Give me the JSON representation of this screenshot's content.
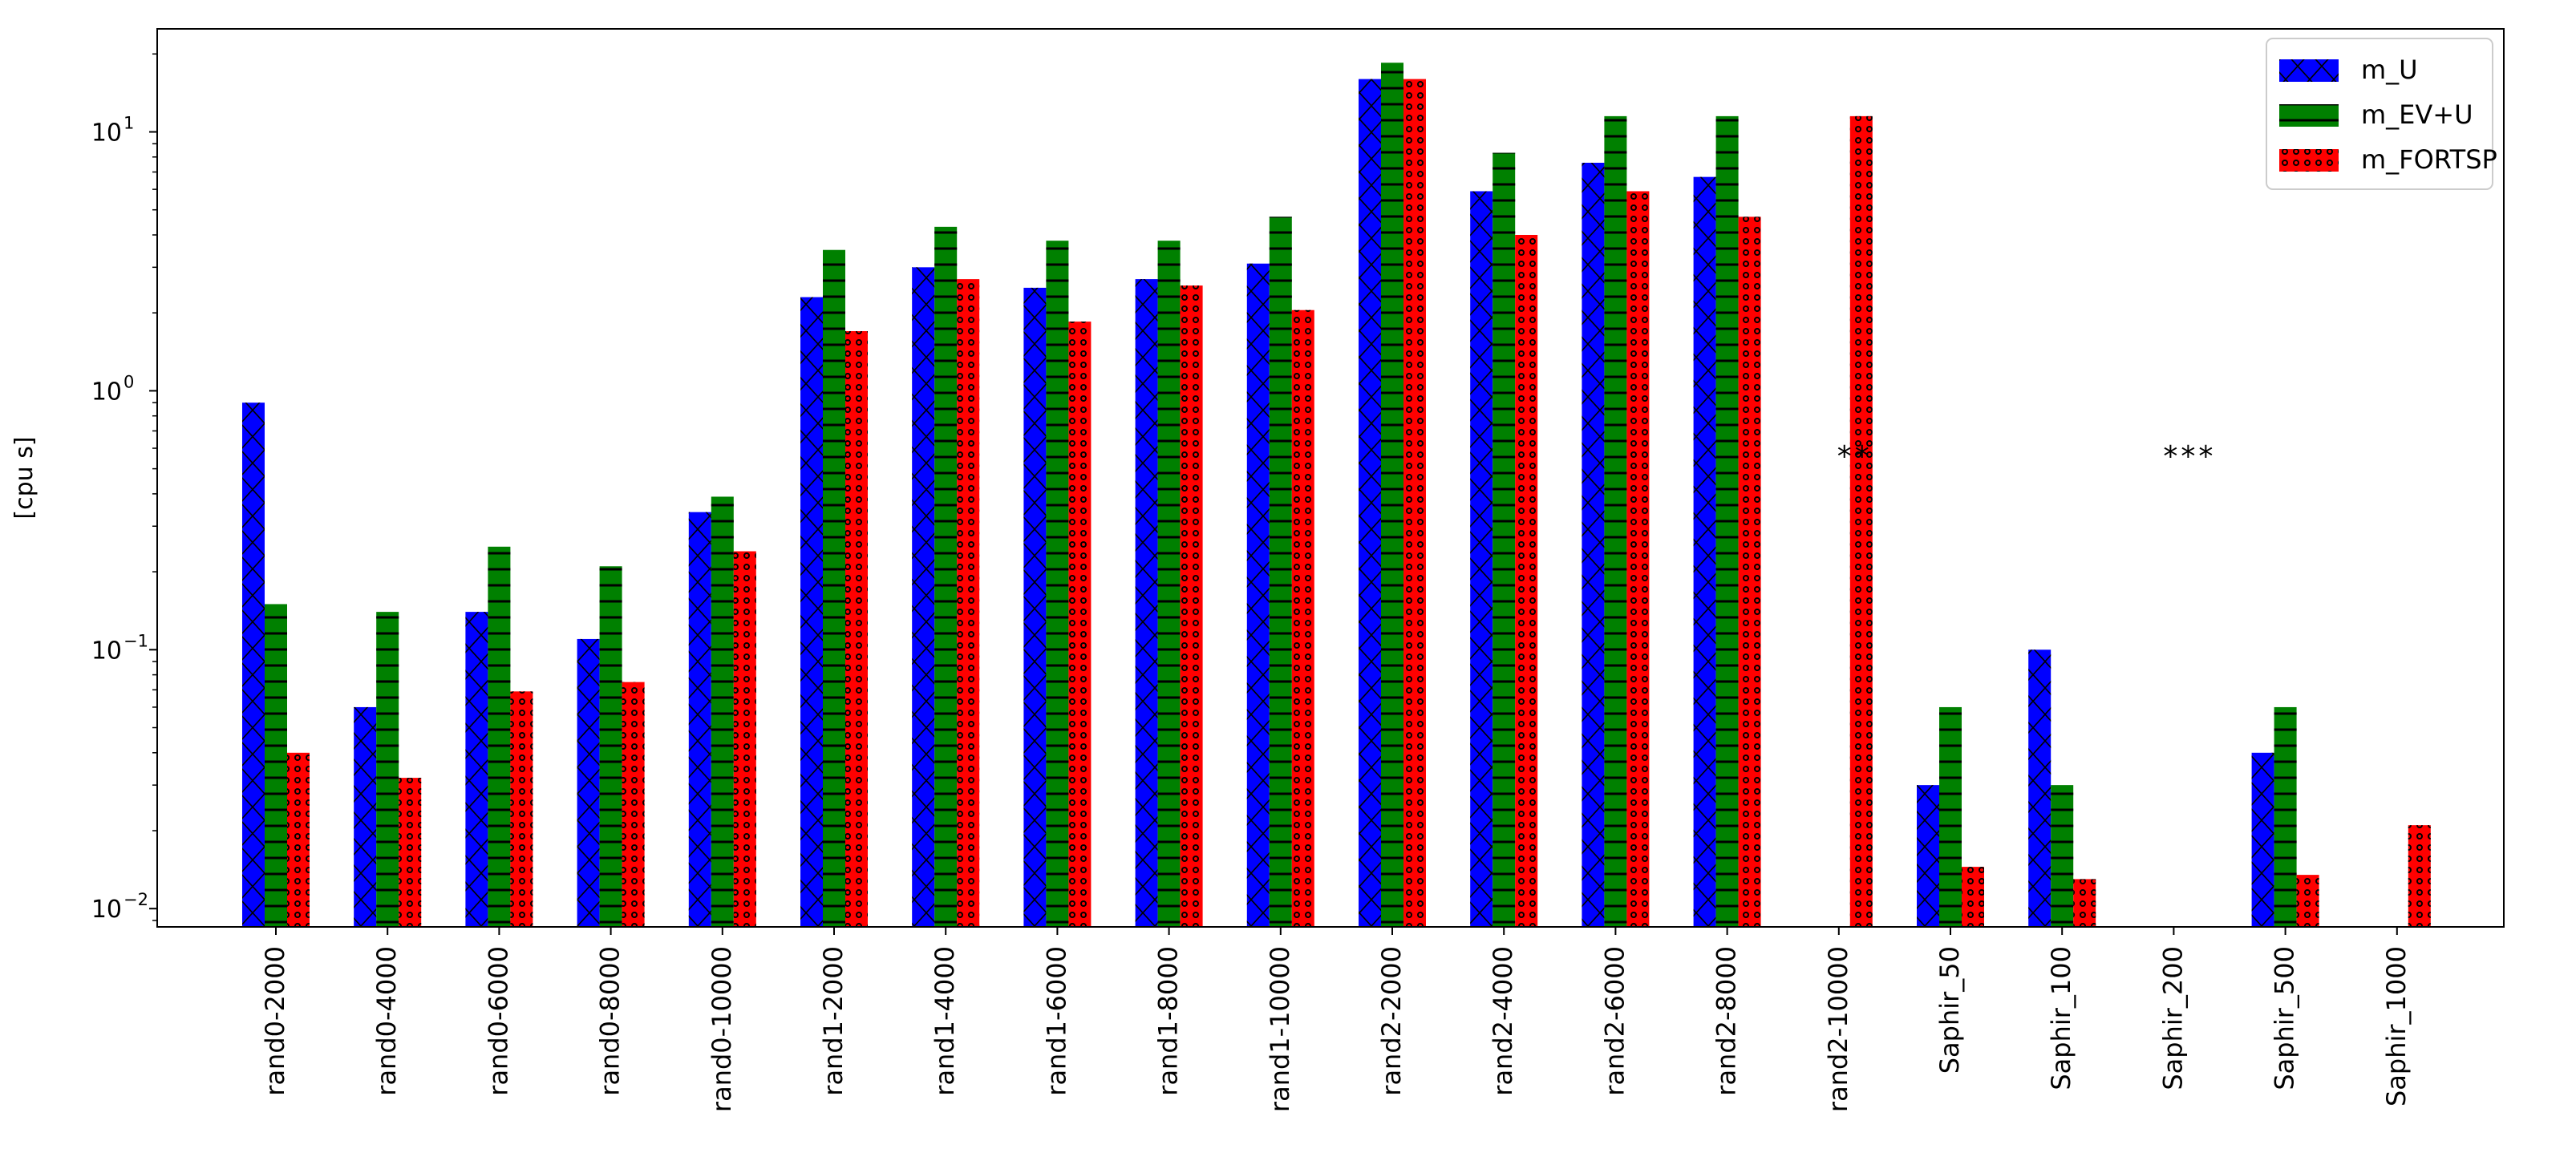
{
  "chart_data": {
    "type": "bar",
    "scale": "log",
    "ylabel": "[cpu s]",
    "ylim": [
      0.0085,
      25
    ],
    "y_ticks": [
      {
        "value": 0.01,
        "base": "10",
        "exp": "−2"
      },
      {
        "value": 0.1,
        "base": "10",
        "exp": "−1"
      },
      {
        "value": 1,
        "base": "10",
        "exp": "0"
      },
      {
        "value": 10,
        "base": "10",
        "exp": "1"
      }
    ],
    "categories": [
      "rand0-2000",
      "rand0-4000",
      "rand0-6000",
      "rand0-8000",
      "rand0-10000",
      "rand1-2000",
      "rand1-4000",
      "rand1-6000",
      "rand1-8000",
      "rand1-10000",
      "rand2-2000",
      "rand2-4000",
      "rand2-6000",
      "rand2-8000",
      "rand2-10000",
      "Saphir_50",
      "Saphir_100",
      "Saphir_200",
      "Saphir_500",
      "Saphir_1000"
    ],
    "series": [
      {
        "name": "m_U",
        "color": "#0000ff",
        "hatch": "x",
        "values": [
          0.9,
          0.06,
          0.14,
          0.11,
          0.34,
          2.3,
          3.0,
          2.5,
          2.7,
          3.1,
          16,
          5.9,
          7.6,
          6.7,
          null,
          0.03,
          0.1,
          null,
          0.04,
          null
        ]
      },
      {
        "name": "m_EV+U",
        "color": "#008000",
        "hatch": "-",
        "values": [
          0.15,
          0.14,
          0.25,
          0.21,
          0.39,
          3.5,
          4.3,
          3.8,
          3.8,
          4.7,
          18.5,
          8.3,
          11.5,
          11.5,
          null,
          0.06,
          0.03,
          null,
          0.06,
          null
        ]
      },
      {
        "name": "m_FORTSP",
        "color": "#ff0000",
        "hatch": "o",
        "values": [
          0.04,
          0.032,
          0.069,
          0.075,
          0.24,
          1.7,
          2.7,
          1.85,
          2.55,
          2.05,
          16,
          4.0,
          5.9,
          4.7,
          11.5,
          0.0145,
          0.013,
          null,
          0.0135,
          0.021
        ]
      }
    ],
    "annotations": [
      {
        "text": "**",
        "category": "rand2-10000",
        "y": 0.55
      },
      {
        "text": "***",
        "category": "Saphir_200",
        "y": 0.55
      }
    ],
    "legend": "top-right",
    "grid": false
  }
}
